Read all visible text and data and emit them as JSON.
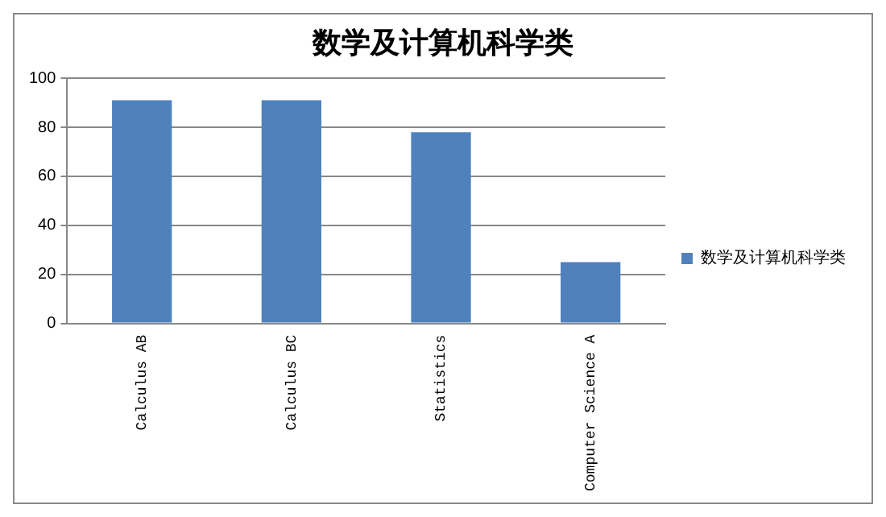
{
  "chart_data": {
    "type": "bar",
    "title": "数学及计算机科学类",
    "categories": [
      "Calculus AB",
      "Calculus BC",
      "Statistics",
      "Computer Science A"
    ],
    "series": [
      {
        "name": "数学及计算机科学类",
        "color": "#4f81bd",
        "values": [
          91,
          91,
          78,
          25
        ]
      }
    ],
    "ylim": [
      0,
      100
    ],
    "yticks": [
      0,
      20,
      40,
      60,
      80,
      100
    ],
    "grid": "y",
    "legend": "right"
  }
}
